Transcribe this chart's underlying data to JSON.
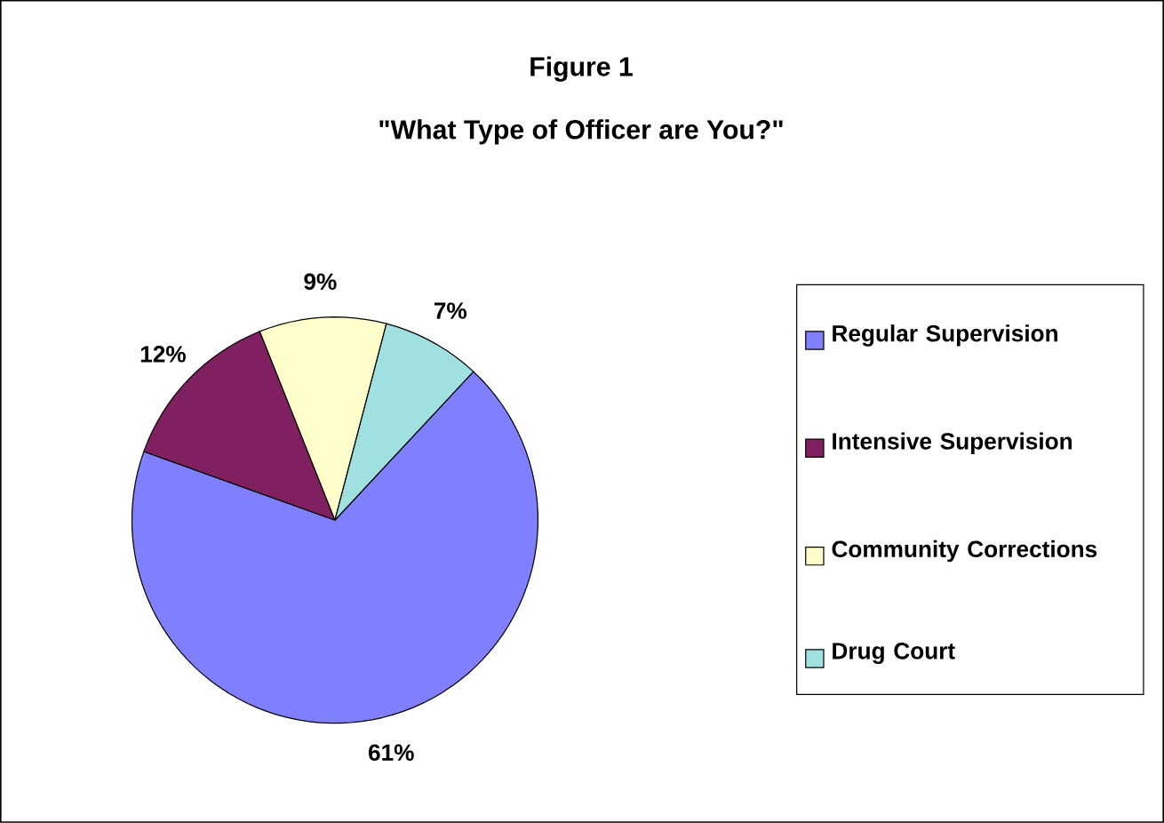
{
  "chart_data": {
    "type": "pie",
    "title": "Figure 1",
    "subtitle": "\"What Type of Officer are You?\"",
    "categories": [
      "Regular Supervision",
      "Intensive Supervision",
      "Community Corrections",
      "Drug Court"
    ],
    "values": [
      61,
      12,
      9,
      7
    ],
    "value_labels": [
      "61%",
      "12%",
      "9%",
      "7%"
    ],
    "colors": [
      "#8080ff",
      "#802060",
      "#ffffcc",
      "#a0e0e0"
    ],
    "legend": "right"
  }
}
